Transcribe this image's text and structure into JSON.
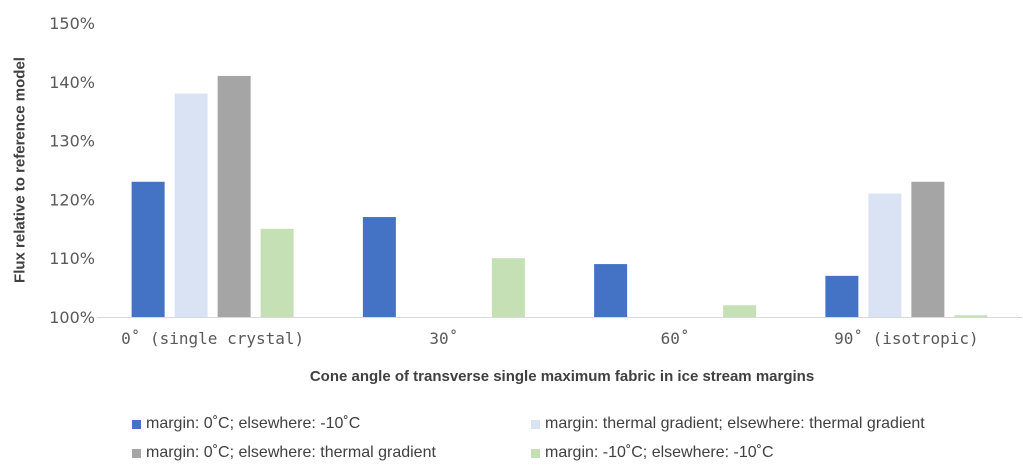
{
  "chart_data": {
    "type": "bar",
    "ylabel": "Flux relative to reference model",
    "xlabel": "Cone angle of transverse single maximum fabric in ice stream margins",
    "categories": [
      "0˚ (single crystal)",
      "30˚",
      "60˚",
      "90˚ (isotropic)"
    ],
    "ylim": [
      100,
      150
    ],
    "yticks": [
      100,
      110,
      120,
      130,
      140,
      150
    ],
    "ytick_labels": [
      "100%",
      "110%",
      "120%",
      "130%",
      "140%",
      "150%"
    ],
    "grid": false,
    "legend_position": "bottom",
    "series": [
      {
        "name": "margin: 0˚C; elsewhere: -10˚C",
        "color": "#4472C4",
        "values": [
          123,
          117,
          109,
          107
        ]
      },
      {
        "name": "margin: thermal gradient; elsewhere: thermal gradient",
        "color": "#DAE3F3",
        "values": [
          138,
          null,
          null,
          121
        ]
      },
      {
        "name": "margin: 0˚C; elsewhere: thermal gradient",
        "color": "#A5A5A5",
        "values": [
          141,
          null,
          null,
          123
        ]
      },
      {
        "name": "margin: -10˚C; elsewhere: -10˚C",
        "color": "#C5E0B4",
        "values": [
          115,
          110,
          102,
          100.3
        ]
      }
    ]
  }
}
